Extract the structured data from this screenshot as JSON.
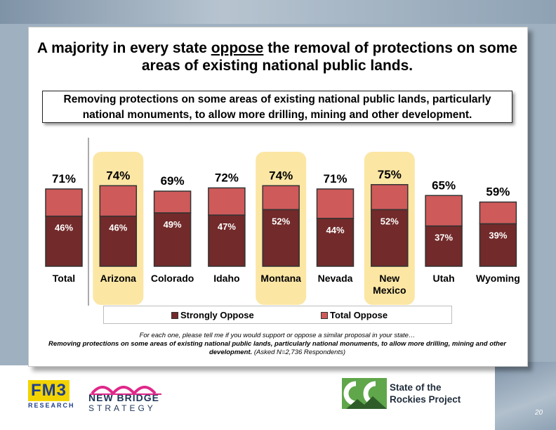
{
  "slide": {
    "title_pre": "A majority in every state ",
    "title_underlined": "oppose",
    "title_post": " the removal of protections on some areas of existing national public lands.",
    "question": "Removing protections on some areas of existing national public lands, particularly national monuments, to allow more drilling, mining and other development.",
    "footer_line1": "For each one, please tell me if you would support or oppose a similar proposal in your state…",
    "footer_bold": "Removing protections on some areas of existing national public lands, particularly national monuments, to allow more drilling, mining and other development.",
    "footer_note": " (Asked N=2,736 Respondents)",
    "page_number": "20"
  },
  "logos": {
    "fm3": "FM3",
    "fm3_sub": "RESEARCH",
    "newbridge_line1": "NEW BRIDGE",
    "newbridge_line2": "STRATEGY",
    "rockies_line1": "State of the",
    "rockies_line2": "Rockies Project"
  },
  "colors": {
    "strongly_oppose": "#722a2a",
    "total_oppose": "#cf5a5a",
    "highlight": "#fbe6a4"
  },
  "chart_data": {
    "type": "bar",
    "categories": [
      "Total",
      "Arizona",
      "Colorado",
      "Idaho",
      "Montana",
      "Nevada",
      "New Mexico",
      "Utah",
      "Wyoming"
    ],
    "series": [
      {
        "name": "Strongly Oppose",
        "values": [
          46,
          46,
          49,
          47,
          52,
          44,
          52,
          37,
          39
        ],
        "labels": [
          "46%",
          "46%",
          "49%",
          "47%",
          "52%",
          "44%",
          "52%",
          "37%",
          "39%"
        ]
      },
      {
        "name": "Total Oppose",
        "values": [
          71,
          74,
          69,
          72,
          74,
          71,
          75,
          65,
          59
        ],
        "labels": [
          "71%",
          "74%",
          "69%",
          "72%",
          "74%",
          "71%",
          "75%",
          "65%",
          "59%"
        ]
      }
    ],
    "highlighted": [
      "Arizona",
      "Montana",
      "New Mexico"
    ],
    "legend": [
      "Strongly Oppose",
      "Total Oppose"
    ],
    "legend_position": "bottom"
  }
}
